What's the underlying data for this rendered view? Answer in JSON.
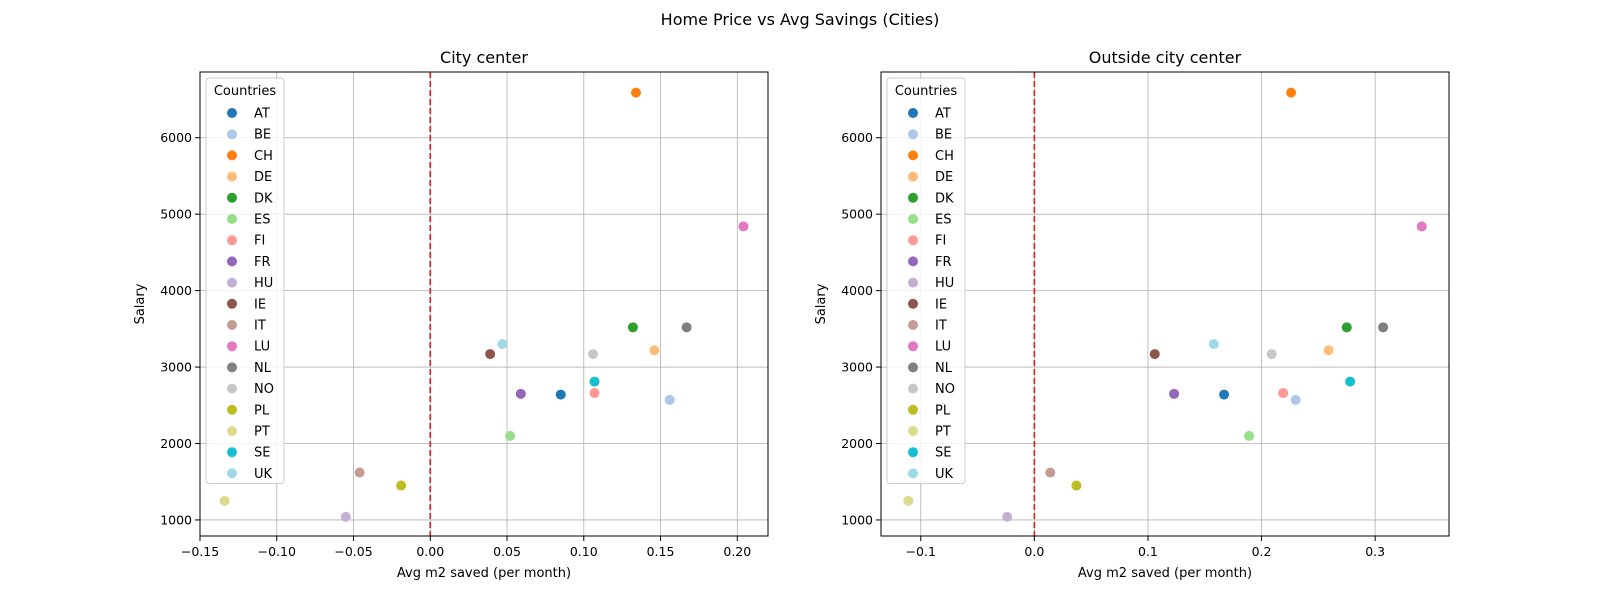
{
  "figure_title": "Home Price vs Avg Savings (Cities)",
  "legend_title": "Countries",
  "colors": {
    "AT": "#1f77b4",
    "BE": "#aec7e8",
    "CH": "#ff7f0e",
    "DE": "#ffbb78",
    "DK": "#2ca02c",
    "ES": "#98df8a",
    "FI": "#ff9896",
    "FR": "#9467bd",
    "HU": "#c5b0d5",
    "IE": "#8c564b",
    "IT": "#c49c94",
    "LU": "#e377c2",
    "NL": "#7f7f7f",
    "NO": "#c7c7c7",
    "PL": "#bcbd22",
    "PT": "#dbdb8d",
    "SE": "#17becf",
    "UK": "#9edae5",
    "reference_line": "#e41a1c",
    "grid": "#b0b0b0"
  },
  "chart_data": [
    {
      "type": "scatter",
      "title": "City center",
      "xlabel": "Avg m2 saved (per month)",
      "ylabel": "Salary",
      "xlim": [
        -0.15,
        0.22
      ],
      "ylim": [
        790,
        6860
      ],
      "xticks": [
        -0.15,
        -0.1,
        -0.05,
        0.0,
        0.05,
        0.1,
        0.15,
        0.2
      ],
      "xtick_labels": [
        "−0.15",
        "−0.10",
        "−0.05",
        "0.00",
        "0.05",
        "0.10",
        "0.15",
        "0.20"
      ],
      "yticks": [
        1000,
        2000,
        3000,
        4000,
        5000,
        6000
      ],
      "ytick_labels": [
        "1000",
        "2000",
        "3000",
        "4000",
        "5000",
        "6000"
      ],
      "grid": true,
      "vline_x": 0,
      "legend": "upper-left",
      "series": [
        {
          "name": "AT",
          "x": 0.085,
          "y": 2640
        },
        {
          "name": "BE",
          "x": 0.156,
          "y": 2570
        },
        {
          "name": "CH",
          "x": 0.134,
          "y": 6590
        },
        {
          "name": "DE",
          "x": 0.146,
          "y": 3220
        },
        {
          "name": "DK",
          "x": 0.132,
          "y": 3520
        },
        {
          "name": "ES",
          "x": 0.052,
          "y": 2100
        },
        {
          "name": "FI",
          "x": 0.107,
          "y": 2660
        },
        {
          "name": "FR",
          "x": 0.059,
          "y": 2650
        },
        {
          "name": "HU",
          "x": -0.055,
          "y": 1040
        },
        {
          "name": "IE",
          "x": 0.039,
          "y": 3170
        },
        {
          "name": "IT",
          "x": -0.046,
          "y": 1620
        },
        {
          "name": "LU",
          "x": 0.204,
          "y": 4840
        },
        {
          "name": "NL",
          "x": 0.167,
          "y": 3520
        },
        {
          "name": "NO",
          "x": 0.106,
          "y": 3170
        },
        {
          "name": "PL",
          "x": -0.019,
          "y": 1450
        },
        {
          "name": "PT",
          "x": -0.134,
          "y": 1250
        },
        {
          "name": "SE",
          "x": 0.107,
          "y": 2810
        },
        {
          "name": "UK",
          "x": 0.047,
          "y": 3300
        }
      ]
    },
    {
      "type": "scatter",
      "title": "Outside city center",
      "xlabel": "Avg m2 saved (per month)",
      "ylabel": "Salary",
      "xlim": [
        -0.135,
        0.365
      ],
      "ylim": [
        790,
        6860
      ],
      "xticks": [
        -0.1,
        0.0,
        0.1,
        0.2,
        0.3
      ],
      "xtick_labels": [
        "−0.1",
        "0.0",
        "0.1",
        "0.2",
        "0.3"
      ],
      "yticks": [
        1000,
        2000,
        3000,
        4000,
        5000,
        6000
      ],
      "ytick_labels": [
        "1000",
        "2000",
        "3000",
        "4000",
        "5000",
        "6000"
      ],
      "grid": true,
      "vline_x": 0,
      "legend": "upper-left",
      "series": [
        {
          "name": "AT",
          "x": 0.167,
          "y": 2640
        },
        {
          "name": "BE",
          "x": 0.23,
          "y": 2570
        },
        {
          "name": "CH",
          "x": 0.226,
          "y": 6590
        },
        {
          "name": "DE",
          "x": 0.259,
          "y": 3220
        },
        {
          "name": "DK",
          "x": 0.275,
          "y": 3520
        },
        {
          "name": "ES",
          "x": 0.189,
          "y": 2100
        },
        {
          "name": "FI",
          "x": 0.219,
          "y": 2660
        },
        {
          "name": "FR",
          "x": 0.123,
          "y": 2650
        },
        {
          "name": "HU",
          "x": -0.024,
          "y": 1040
        },
        {
          "name": "IE",
          "x": 0.106,
          "y": 3170
        },
        {
          "name": "IT",
          "x": 0.014,
          "y": 1620
        },
        {
          "name": "LU",
          "x": 0.341,
          "y": 4840
        },
        {
          "name": "NL",
          "x": 0.307,
          "y": 3520
        },
        {
          "name": "NO",
          "x": 0.209,
          "y": 3170
        },
        {
          "name": "PL",
          "x": 0.037,
          "y": 1450
        },
        {
          "name": "PT",
          "x": -0.111,
          "y": 1250
        },
        {
          "name": "SE",
          "x": 0.278,
          "y": 2810
        },
        {
          "name": "UK",
          "x": 0.158,
          "y": 3300
        }
      ]
    }
  ]
}
